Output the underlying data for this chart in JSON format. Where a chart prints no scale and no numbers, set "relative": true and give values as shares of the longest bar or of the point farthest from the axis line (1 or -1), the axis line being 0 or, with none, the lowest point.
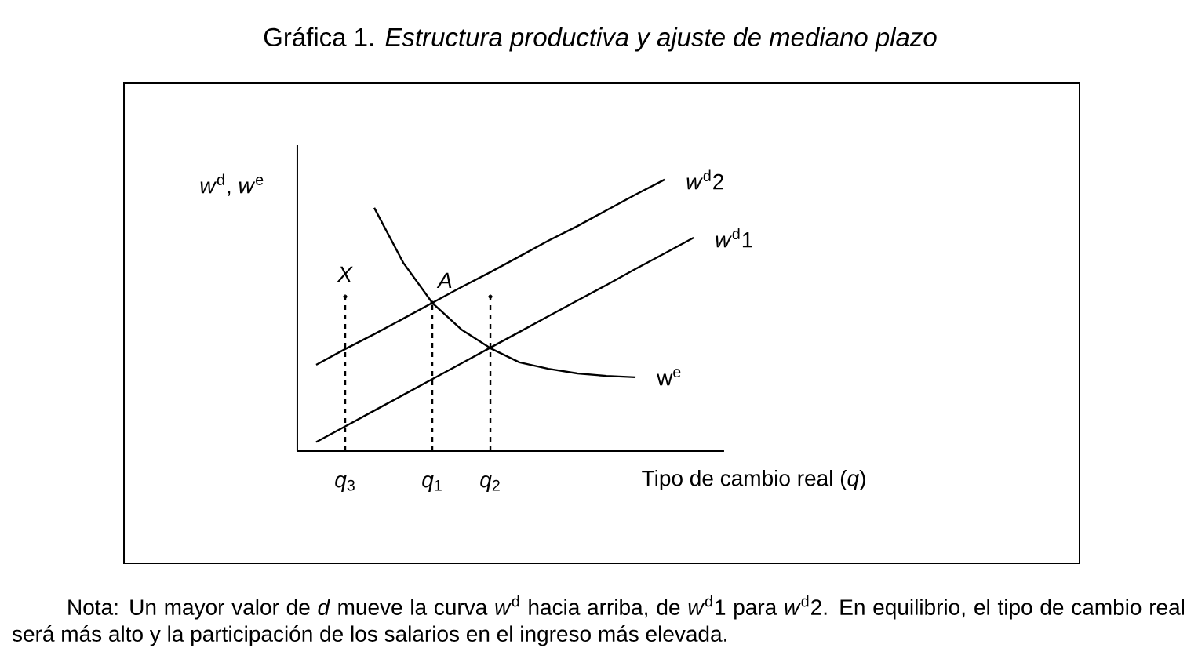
{
  "chart_data": {
    "type": "line",
    "title": "Gráfica 1. *Estructura productiva y ajuste de mediano plazo*",
    "ylabel": "*w*$^{d}$, *w*$^{e}$",
    "xlabel": "Tipo de cambio real (*q*)",
    "relative": true,
    "marker": "none",
    "categories": [
      null,
      "*q*$_{3}$",
      null,
      null,
      "*q*$_{1}$",
      null,
      "*q*$_{2}$",
      null,
      null,
      null,
      null,
      null,
      null,
      null,
      null
    ],
    "series": [
      {
        "name": "*w*$^{d}$2",
        "color": "#000000",
        "values": [
          0.318,
          0.376,
          0.431,
          0.488,
          0.546,
          0.604,
          0.659,
          0.717,
          0.775,
          0.829,
          0.887,
          0.945,
          1,
          null,
          null
        ]
      },
      {
        "name": "*w*$^{d}$1",
        "color": "#000000",
        "values": [
          0.033,
          0.091,
          0.149,
          0.207,
          0.265,
          0.323,
          0.381,
          0.439,
          0.497,
          0.555,
          0.612,
          0.671,
          0.728,
          0.786,
          null
        ]
      },
      {
        "name": "w$^{e}$",
        "color": "#000000",
        "values": [
          null,
          null,
          0.896,
          0.694,
          0.546,
          0.448,
          0.379,
          0.327,
          0.303,
          0.286,
          0.277,
          0.272,
          null,
          null,
          null
        ]
      },
      {
        "type": "lollipop",
        "color": "#000000",
        "line_style": "dashed",
        "values": [
          null,
          0.569,
          null,
          null,
          null,
          null,
          null,
          null,
          null,
          null,
          null,
          null,
          null,
          null,
          null
        ]
      },
      {
        "type": "lollipop",
        "color": "#000000",
        "line_style": "dashed",
        "values": [
          null,
          null,
          null,
          null,
          0.546,
          null,
          null,
          null,
          null,
          null,
          null,
          null,
          null,
          null,
          null
        ]
      },
      {
        "type": "lollipop",
        "color": "#000000",
        "line_style": "dashed",
        "values": [
          null,
          null,
          null,
          null,
          null,
          null,
          0.569,
          null,
          null,
          null,
          null,
          null,
          null,
          null,
          null
        ]
      }
    ],
    "annotations": [
      {
        "text": "*X*",
        "x": "*q*$_{3}$",
        "y": 0.569
      },
      {
        "text": "*A*",
        "x": "*q*$_{1}$",
        "y": 0.546
      },
      "Nota: Un mayor valor de *d* mueve la curva *w*$^{d}$ hacia arriba, de *w*$^{d}$1 para *w*$^{d}$2. En equilibrio, el tipo de cambio real será más alto y la participación de los salarios en el ingreso más elevada."
    ]
  }
}
